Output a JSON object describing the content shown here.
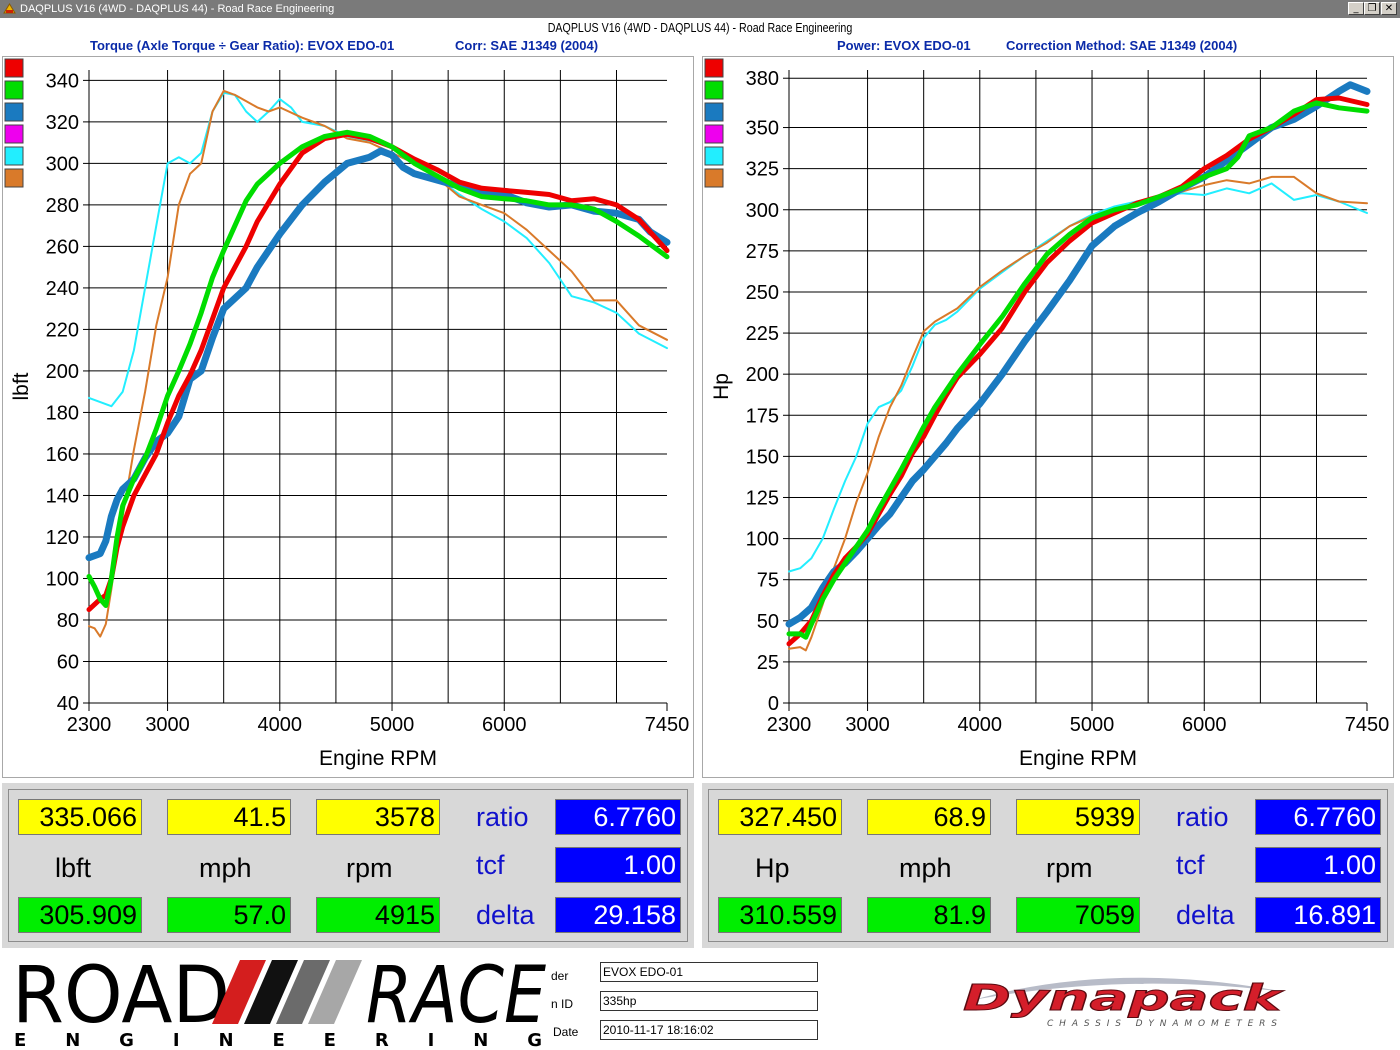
{
  "window": {
    "title": "DAQPLUS V16 (4WD - DAQPLUS 44) - Road Race Engineering",
    "minimize_label": "_",
    "restore_label": "❐",
    "close_label": "✕"
  },
  "report_title": "DAQPLUS V16 (4WD - DAQPLUS 44) - Road Race Engineering",
  "torque_header": {
    "left": "Torque (Axle Torque ÷ Gear Ratio): EVOX EDO-01",
    "right": "Corr: SAE J1349 (2004)"
  },
  "power_header": {
    "left": "Power: EVOX EDO-01",
    "right": "Correction Method: SAE J1349 (2004)"
  },
  "legend_colors": [
    "#ee0000",
    "#00dd00",
    "#1a7ac0",
    "#ee00ee",
    "#22eeff",
    "#d97a2a"
  ],
  "chart_data": [
    {
      "type": "line",
      "ylabel": "lbft",
      "xlabel": "Engine RPM",
      "xlim": [
        2300,
        7450
      ],
      "ylim": [
        40,
        345
      ],
      "x_ticks": [
        2300,
        3000,
        4000,
        5000,
        6000,
        7450
      ],
      "x_tick_labels": [
        "2300",
        "3000",
        "4000",
        "5000",
        "6000",
        "7450"
      ],
      "x_grid": [
        3000,
        3500,
        4000,
        4500,
        5000,
        5500,
        6000,
        6500,
        7000
      ],
      "y_ticks": [
        40,
        60,
        80,
        100,
        120,
        140,
        160,
        180,
        200,
        220,
        240,
        260,
        280,
        300,
        320,
        340
      ],
      "y_tick_labels": [
        "40",
        "60",
        "80",
        "100",
        "120",
        "140",
        "160",
        "180",
        "200",
        "220",
        "240",
        "260",
        "280",
        "300",
        "320",
        "340"
      ],
      "series": [
        {
          "color": "#22eeff",
          "width": 2,
          "x": [
            2300,
            2400,
            2500,
            2600,
            2700,
            2800,
            2900,
            3000,
            3100,
            3200,
            3300,
            3400,
            3500,
            3600,
            3700,
            3800,
            3900,
            4000,
            4100,
            4200,
            4400,
            4600,
            4800,
            5000,
            5200,
            5400,
            5600,
            5800,
            6000,
            6200,
            6400,
            6600,
            6800,
            7000,
            7200,
            7450
          ],
          "y": [
            187,
            185,
            183,
            190,
            210,
            240,
            270,
            300,
            303,
            300,
            305,
            325,
            334,
            333,
            325,
            320,
            325,
            331,
            327,
            320,
            318,
            313,
            311,
            308,
            302,
            293,
            285,
            278,
            272,
            264,
            252,
            236,
            233,
            228,
            218,
            211
          ]
        },
        {
          "color": "#d97a2a",
          "width": 2,
          "x": [
            2300,
            2350,
            2400,
            2450,
            2500,
            2550,
            2600,
            2700,
            2800,
            2900,
            3000,
            3100,
            3200,
            3300,
            3400,
            3500,
            3600,
            3700,
            3800,
            3900,
            4000,
            4200,
            4400,
            4600,
            4800,
            5000,
            5200,
            5400,
            5600,
            5800,
            6000,
            6200,
            6400,
            6600,
            6800,
            7000,
            7200,
            7450
          ],
          "y": [
            77,
            76,
            72,
            78,
            95,
            115,
            130,
            162,
            190,
            222,
            245,
            280,
            295,
            300,
            325,
            335,
            333,
            330,
            327,
            325,
            327,
            322,
            318,
            312,
            310,
            305,
            300,
            293,
            284,
            280,
            276,
            268,
            258,
            248,
            234,
            234,
            222,
            215
          ]
        },
        {
          "color": "#1a7ac0",
          "width": 7,
          "x": [
            2300,
            2400,
            2450,
            2500,
            2550,
            2600,
            2700,
            2800,
            2900,
            3000,
            3100,
            3200,
            3300,
            3400,
            3500,
            3600,
            3700,
            3800,
            4000,
            4200,
            4400,
            4600,
            4800,
            4900,
            5000,
            5100,
            5200,
            5400,
            5600,
            5800,
            6000,
            6200,
            6400,
            6600,
            6800,
            7000,
            7200,
            7300,
            7450
          ],
          "y": [
            110,
            112,
            118,
            130,
            138,
            143,
            148,
            158,
            166,
            170,
            178,
            196,
            200,
            216,
            230,
            235,
            240,
            250,
            266,
            280,
            291,
            300,
            303,
            306,
            304,
            298,
            295,
            292,
            289,
            286,
            285,
            281,
            279,
            280,
            277,
            276,
            273,
            267,
            262
          ]
        },
        {
          "color": "#ee0000",
          "width": 5,
          "x": [
            2300,
            2400,
            2450,
            2500,
            2550,
            2600,
            2700,
            2800,
            2900,
            3000,
            3100,
            3200,
            3300,
            3400,
            3500,
            3600,
            3700,
            3800,
            4000,
            4200,
            4400,
            4600,
            4800,
            5000,
            5200,
            5400,
            5600,
            5800,
            6000,
            6200,
            6400,
            6600,
            6800,
            7000,
            7200,
            7450
          ],
          "y": [
            85,
            90,
            92,
            100,
            115,
            125,
            140,
            150,
            160,
            175,
            188,
            198,
            210,
            225,
            240,
            250,
            260,
            272,
            290,
            305,
            312,
            314,
            312,
            308,
            302,
            297,
            291,
            288,
            287,
            286,
            285,
            282,
            283,
            280,
            273,
            258
          ]
        },
        {
          "color": "#00dd00",
          "width": 5,
          "x": [
            2300,
            2350,
            2400,
            2450,
            2500,
            2550,
            2600,
            2700,
            2800,
            2900,
            3000,
            3100,
            3200,
            3300,
            3400,
            3500,
            3600,
            3700,
            3800,
            4000,
            4200,
            4400,
            4600,
            4800,
            5000,
            5200,
            5400,
            5600,
            5800,
            6000,
            6200,
            6400,
            6600,
            6800,
            7000,
            7200,
            7450
          ],
          "y": [
            101,
            96,
            90,
            87,
            100,
            120,
            135,
            148,
            158,
            172,
            188,
            200,
            213,
            228,
            245,
            258,
            270,
            282,
            290,
            300,
            308,
            313,
            315,
            313,
            308,
            300,
            294,
            288,
            284,
            283,
            282,
            280,
            280,
            278,
            272,
            265,
            255
          ]
        }
      ]
    },
    {
      "type": "line",
      "ylabel": "Hp",
      "xlabel": "Engine RPM",
      "xlim": [
        2300,
        7450
      ],
      "ylim": [
        0,
        385
      ],
      "x_ticks": [
        2300,
        3000,
        4000,
        5000,
        6000,
        7450
      ],
      "x_tick_labels": [
        "2300",
        "3000",
        "4000",
        "5000",
        "6000",
        "7450"
      ],
      "x_grid": [
        3000,
        3500,
        4000,
        4500,
        5000,
        5500,
        6000,
        6500,
        7000
      ],
      "y_ticks": [
        0,
        25,
        50,
        75,
        100,
        125,
        150,
        175,
        200,
        225,
        250,
        275,
        300,
        325,
        350,
        380
      ],
      "y_tick_labels": [
        "0",
        "25",
        "50",
        "75",
        "100",
        "125",
        "150",
        "175",
        "200",
        "225",
        "250",
        "275",
        "300",
        "325",
        "350",
        "380"
      ],
      "series": [
        {
          "color": "#22eeff",
          "width": 2,
          "x": [
            2300,
            2400,
            2500,
            2600,
            2700,
            2800,
            2900,
            3000,
            3100,
            3200,
            3300,
            3400,
            3500,
            3600,
            3700,
            3800,
            4000,
            4200,
            4400,
            4600,
            4800,
            5000,
            5200,
            5400,
            5600,
            5800,
            6000,
            6200,
            6400,
            6600,
            6800,
            7000,
            7200,
            7450
          ],
          "y": [
            80,
            82,
            88,
            100,
            118,
            135,
            150,
            170,
            180,
            183,
            190,
            205,
            222,
            230,
            233,
            238,
            252,
            262,
            272,
            281,
            290,
            297,
            302,
            305,
            308,
            310,
            309,
            313,
            310,
            316,
            306,
            309,
            305,
            298
          ]
        },
        {
          "color": "#d97a2a",
          "width": 2,
          "x": [
            2300,
            2400,
            2450,
            2500,
            2600,
            2700,
            2800,
            2900,
            3000,
            3100,
            3200,
            3300,
            3400,
            3500,
            3600,
            3800,
            4000,
            4200,
            4400,
            4600,
            4800,
            5000,
            5200,
            5400,
            5600,
            5800,
            6000,
            6200,
            6400,
            6600,
            6800,
            7000,
            7200,
            7450
          ],
          "y": [
            33,
            34,
            32,
            40,
            60,
            82,
            100,
            122,
            140,
            162,
            180,
            193,
            210,
            226,
            232,
            240,
            253,
            263,
            272,
            280,
            290,
            296,
            300,
            303,
            307,
            311,
            315,
            318,
            316,
            320,
            320,
            310,
            305,
            304
          ]
        },
        {
          "color": "#1a7ac0",
          "width": 7,
          "x": [
            2300,
            2400,
            2500,
            2600,
            2700,
            2800,
            2900,
            3000,
            3100,
            3200,
            3300,
            3400,
            3500,
            3600,
            3700,
            3800,
            4000,
            4200,
            4400,
            4600,
            4800,
            5000,
            5200,
            5400,
            5600,
            5800,
            6000,
            6200,
            6400,
            6600,
            6800,
            7000,
            7200,
            7300,
            7450
          ],
          "y": [
            48,
            52,
            58,
            70,
            80,
            85,
            92,
            100,
            108,
            115,
            125,
            135,
            142,
            150,
            158,
            167,
            182,
            200,
            220,
            238,
            257,
            278,
            290,
            298,
            305,
            313,
            320,
            330,
            340,
            350,
            355,
            363,
            372,
            376,
            372
          ]
        },
        {
          "color": "#ee0000",
          "width": 5,
          "x": [
            2300,
            2400,
            2500,
            2600,
            2700,
            2800,
            2900,
            3000,
            3100,
            3200,
            3300,
            3400,
            3500,
            3600,
            3700,
            3800,
            4000,
            4200,
            4400,
            4600,
            4800,
            5000,
            5200,
            5400,
            5600,
            5800,
            6000,
            6200,
            6400,
            6600,
            6800,
            7000,
            7200,
            7450
          ],
          "y": [
            36,
            42,
            50,
            65,
            78,
            88,
            95,
            103,
            115,
            127,
            138,
            152,
            162,
            175,
            187,
            198,
            212,
            228,
            250,
            268,
            281,
            292,
            298,
            304,
            308,
            314,
            325,
            333,
            343,
            350,
            358,
            367,
            368,
            364
          ]
        },
        {
          "color": "#00dd00",
          "width": 5,
          "x": [
            2300,
            2400,
            2450,
            2500,
            2600,
            2700,
            2800,
            2900,
            3000,
            3100,
            3200,
            3300,
            3400,
            3500,
            3600,
            3800,
            4000,
            4200,
            4400,
            4600,
            4800,
            5000,
            5200,
            5400,
            5600,
            5800,
            6000,
            6200,
            6300,
            6400,
            6600,
            6800,
            7000,
            7200,
            7450
          ],
          "y": [
            42,
            42,
            40,
            48,
            63,
            75,
            85,
            95,
            105,
            118,
            130,
            142,
            155,
            168,
            180,
            200,
            218,
            235,
            255,
            273,
            285,
            295,
            300,
            303,
            308,
            313,
            320,
            325,
            332,
            345,
            350,
            360,
            365,
            362,
            360
          ]
        }
      ]
    }
  ],
  "torque_readout": {
    "top_values": [
      "335.066",
      "41.5",
      "3578"
    ],
    "units": [
      "lbft",
      "mph",
      "rpm"
    ],
    "bottom_values": [
      "305.909",
      "57.0",
      "4915"
    ],
    "labels": [
      "ratio",
      "tcf",
      "delta"
    ],
    "blue_values": [
      "6.7760",
      "1.00",
      "29.158"
    ]
  },
  "power_readout": {
    "top_values": [
      "327.450",
      "68.9",
      "5939"
    ],
    "units": [
      "Hp",
      "mph",
      "rpm"
    ],
    "bottom_values": [
      "310.559",
      "81.9",
      "7059"
    ],
    "labels": [
      "ratio",
      "tcf",
      "delta"
    ],
    "blue_values": [
      "6.7760",
      "1.00",
      "16.891"
    ]
  },
  "info": {
    "label1": "der",
    "value1": "EVOX EDO-01",
    "label2": "n ID",
    "value2": "335hp",
    "label3": "Date",
    "value3": "2010-11-17 18:16:02"
  },
  "logo_road": {
    "road": "ROAD",
    "race": "RACE",
    "engineering": "E N G I N E E R I N G"
  },
  "logo_dynapack": {
    "name": "Dynapack",
    "tagline": "CHASSIS DYNAMOMETERS"
  }
}
